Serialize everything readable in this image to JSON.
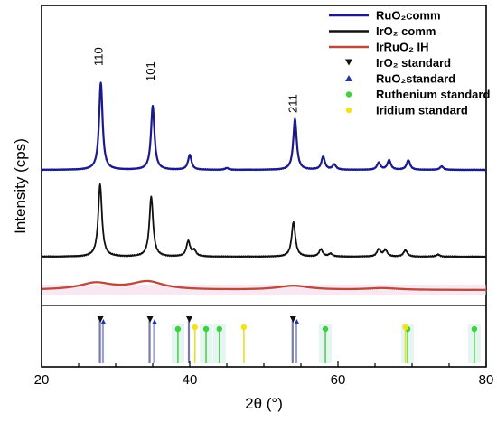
{
  "chart_data": {
    "type": "line",
    "xlabel": "2θ (°)",
    "ylabel": "Intensity (cps)",
    "xlim": [
      20,
      80
    ],
    "x_ticks": [
      20,
      40,
      60,
      80
    ],
    "grid": false,
    "legend_position": "top-right",
    "series": [
      {
        "name": "RuO₂comm",
        "color": "#1a1a8c",
        "peaks": [
          [
            28.0,
            100
          ],
          [
            35.0,
            73
          ],
          [
            40.0,
            17
          ],
          [
            45.0,
            2
          ],
          [
            54.2,
            58
          ],
          [
            58.0,
            15
          ],
          [
            59.5,
            6
          ],
          [
            65.5,
            8
          ],
          [
            66.9,
            11
          ],
          [
            69.5,
            11
          ],
          [
            74.0,
            4
          ]
        ]
      },
      {
        "name": "IrO₂ comm",
        "color": "#111111",
        "peaks": [
          [
            27.9,
            100
          ],
          [
            34.8,
            83
          ],
          [
            39.8,
            21
          ],
          [
            40.6,
            8
          ],
          [
            54.0,
            48
          ],
          [
            57.7,
            10
          ],
          [
            59.0,
            4
          ],
          [
            65.5,
            10
          ],
          [
            66.4,
            9
          ],
          [
            69.1,
            9
          ],
          [
            73.5,
            3
          ]
        ]
      },
      {
        "name": "IrRuO₂ IH",
        "color": "#b94a3c",
        "peaks": [
          [
            27.3,
            100
          ],
          [
            34.3,
            120
          ],
          [
            54.0,
            60
          ],
          [
            66.0,
            25
          ]
        ]
      }
    ],
    "peak_labels": [
      {
        "text": "110",
        "x": 28.0
      },
      {
        "text": "101",
        "x": 35.0
      },
      {
        "text": "211",
        "x": 54.2
      }
    ],
    "reference_standards": [
      {
        "name": "IrO₂ standard",
        "marker": "down-triangle",
        "color": "#111111",
        "positions": [
          28.0,
          34.7,
          40.0,
          54.0
        ]
      },
      {
        "name": "RuO₂standard",
        "marker": "up-triangle",
        "color": "#2533a8",
        "positions": [
          28.1,
          35.0,
          54.2
        ]
      },
      {
        "name": "Ruthenium standard",
        "marker": "circle",
        "color": "#3dd23d",
        "positions": [
          38.4,
          42.2,
          44.0,
          58.3,
          69.4,
          78.4
        ]
      },
      {
        "name": "Iridium standard",
        "marker": "circle",
        "color": "#f2e21a",
        "positions": [
          40.7,
          47.3,
          69.1
        ]
      }
    ]
  }
}
